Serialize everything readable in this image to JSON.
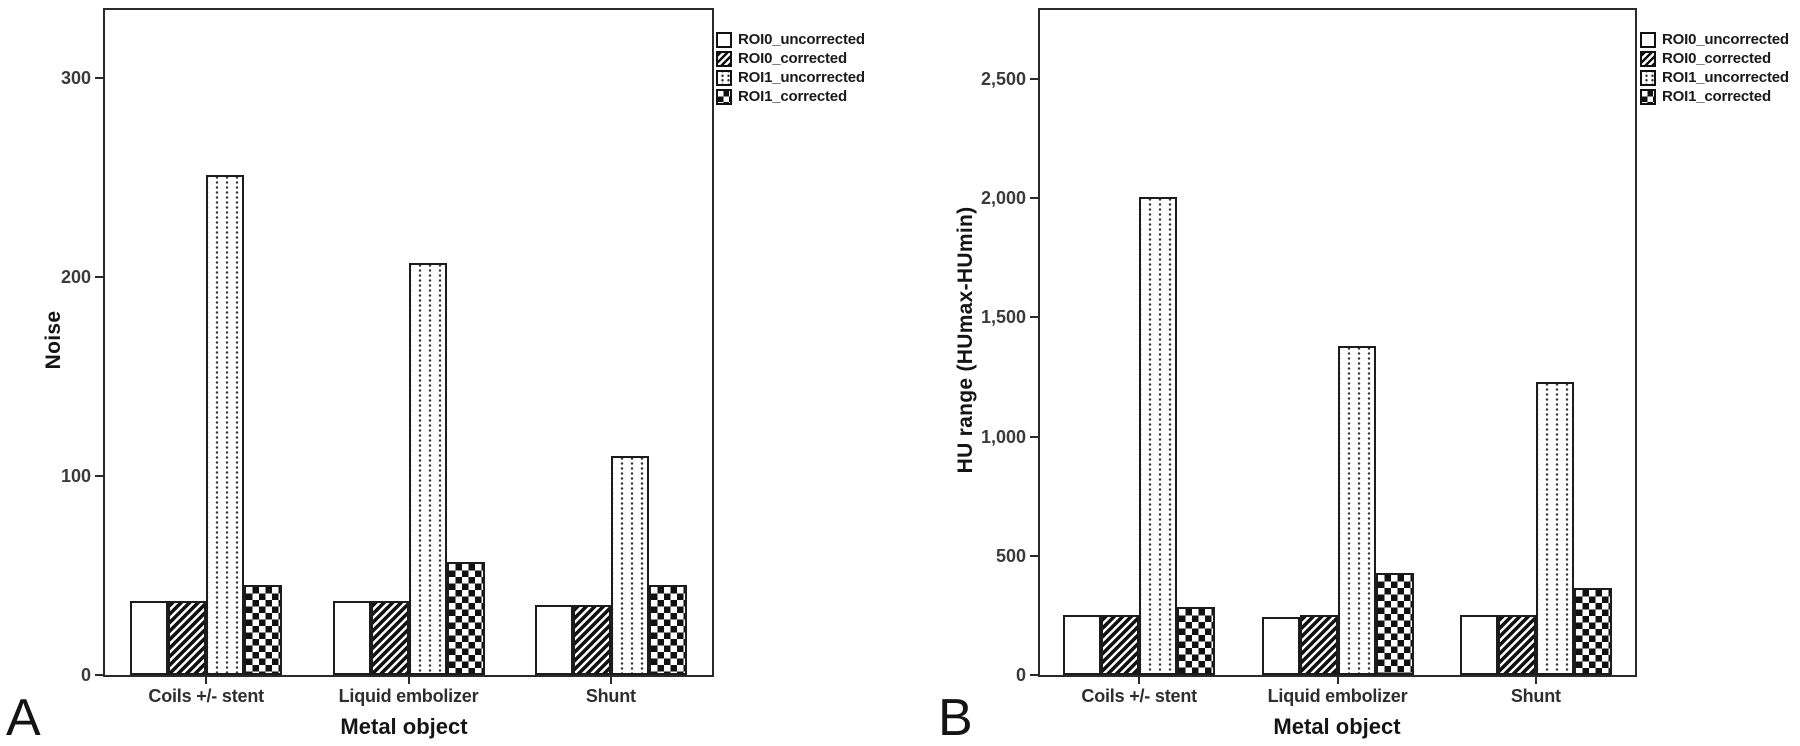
{
  "page": {
    "background": "#ffffff",
    "axis_color": "#2a2a2a",
    "bar_border_color": "#1c1c1c"
  },
  "legend": {
    "items": [
      {
        "label": "ROI0_uncorrected",
        "pattern": "plain",
        "icon": "empty-square-icon"
      },
      {
        "label": "ROI0_corrected",
        "pattern": "hatch",
        "icon": "diagonal-hatch-square-icon"
      },
      {
        "label": "ROI1_uncorrected",
        "pattern": "dots",
        "icon": "dotted-square-icon"
      },
      {
        "label": "ROI1_corrected",
        "pattern": "checker",
        "icon": "checkerboard-square-icon"
      }
    ]
  },
  "chart_data": [
    {
      "panel_letter": "A",
      "type": "bar",
      "title": "",
      "xlabel": "Metal object",
      "ylabel": "Noise",
      "categories": [
        "Coils +/- stent",
        "Liquid embolizer",
        "Shunt"
      ],
      "series": [
        {
          "name": "ROI0_uncorrected",
          "pattern": "plain",
          "values": [
            37,
            37,
            35
          ]
        },
        {
          "name": "ROI0_corrected",
          "pattern": "hatch",
          "values": [
            37,
            37,
            35
          ]
        },
        {
          "name": "ROI1_uncorrected",
          "pattern": "dots",
          "values": [
            251,
            207,
            110
          ]
        },
        {
          "name": "ROI1_corrected",
          "pattern": "checker",
          "values": [
            45,
            57,
            45
          ]
        }
      ],
      "yticks": [
        {
          "value": 0,
          "label": "0"
        },
        {
          "value": 100,
          "label": "100"
        },
        {
          "value": 200,
          "label": "200"
        },
        {
          "value": 300,
          "label": "300"
        }
      ],
      "ylim": [
        0,
        334
      ],
      "grid": false,
      "legend_position": "outside-top-right"
    },
    {
      "panel_letter": "B",
      "type": "bar",
      "title": "",
      "xlabel": "Metal object",
      "ylabel": "HU range (HUmax-HUmin)",
      "categories": [
        "Coils +/- stent",
        "Liquid embolizer",
        "Shunt"
      ],
      "series": [
        {
          "name": "ROI0_uncorrected",
          "pattern": "plain",
          "values": [
            250,
            245,
            250
          ]
        },
        {
          "name": "ROI0_corrected",
          "pattern": "hatch",
          "values": [
            250,
            250,
            250
          ]
        },
        {
          "name": "ROI1_uncorrected",
          "pattern": "dots",
          "values": [
            2005,
            1380,
            1230
          ]
        },
        {
          "name": "ROI1_corrected",
          "pattern": "checker",
          "values": [
            285,
            430,
            365
          ]
        }
      ],
      "yticks": [
        {
          "value": 0,
          "label": "0"
        },
        {
          "value": 500,
          "label": "500"
        },
        {
          "value": 1000,
          "label": "1,000"
        },
        {
          "value": 1500,
          "label": "1,500"
        },
        {
          "value": 2000,
          "label": "2,000"
        },
        {
          "value": 2500,
          "label": "2,500"
        }
      ],
      "ylim": [
        0,
        2790
      ],
      "grid": false,
      "legend_position": "outside-top-right"
    }
  ]
}
